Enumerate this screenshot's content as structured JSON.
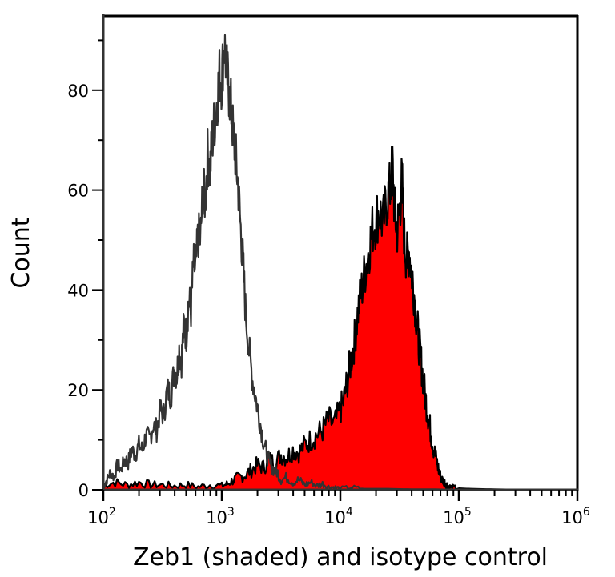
{
  "chart_data": {
    "type": "histogram",
    "title": "",
    "xlabel": "Zeb1 (shaded) and isotype control",
    "ylabel": "Count",
    "xscale": "log",
    "xlim": [
      100,
      1000000
    ],
    "ylim": [
      0,
      95
    ],
    "yticks": [
      0,
      20,
      40,
      60,
      80
    ],
    "ytick_labels": [
      "0",
      "20",
      "40",
      "60",
      "80"
    ],
    "xticks": [
      100,
      1000,
      10000,
      100000,
      1000000
    ],
    "xtick_labels": [
      {
        "base": "10",
        "exp": "2"
      },
      {
        "base": "10",
        "exp": "3"
      },
      {
        "base": "10",
        "exp": "4"
      },
      {
        "base": "10",
        "exp": "5"
      },
      {
        "base": "10",
        "exp": "6"
      }
    ],
    "grid": false,
    "legend": null,
    "series": [
      {
        "name": "Isotype control",
        "style": "outline",
        "color": "#333333",
        "fill": "none",
        "log10_x": [
          2.0,
          2.03,
          2.06,
          2.09,
          2.12,
          2.15,
          2.18,
          2.21,
          2.24,
          2.27,
          2.3,
          2.33,
          2.36,
          2.39,
          2.42,
          2.45,
          2.48,
          2.51,
          2.54,
          2.57,
          2.6,
          2.62,
          2.64,
          2.66,
          2.68,
          2.7,
          2.72,
          2.74,
          2.76,
          2.78,
          2.8,
          2.82,
          2.84,
          2.86,
          2.88,
          2.9,
          2.92,
          2.94,
          2.96,
          2.98,
          3.0,
          3.02,
          3.04,
          3.06,
          3.08,
          3.1,
          3.12,
          3.14,
          3.16,
          3.18,
          3.2,
          3.23,
          3.26,
          3.29,
          3.32,
          3.35,
          3.38,
          3.41,
          3.44,
          3.47,
          3.5,
          3.55,
          3.6,
          3.65,
          3.7,
          3.75,
          3.8,
          3.85,
          3.9,
          3.95,
          4.0,
          4.1,
          4.2,
          4.4,
          4.6,
          4.8,
          5.0,
          5.4,
          5.8,
          6.0
        ],
        "counts": [
          0.5,
          2,
          3.5,
          2.5,
          5,
          4,
          6,
          5.5,
          8,
          7,
          9,
          8,
          11,
          10,
          13,
          12,
          16,
          15,
          20,
          19,
          24,
          23,
          28,
          26,
          33,
          31,
          38,
          36,
          45,
          44,
          51,
          50,
          60,
          58,
          67,
          64,
          70,
          74,
          78,
          83,
          82,
          90,
          84,
          80,
          76,
          70,
          66,
          60,
          52,
          45,
          36,
          28,
          22,
          18,
          14,
          10,
          7,
          5,
          4,
          3.5,
          2,
          2.5,
          1.5,
          2,
          1,
          1.5,
          0.8,
          1.2,
          0.6,
          0.5,
          0.3,
          0.5,
          0.2,
          0.2,
          0.1,
          0.1,
          0,
          0,
          0,
          0
        ]
      },
      {
        "name": "Zeb1",
        "style": "shaded",
        "color": "#000000",
        "fill": "#ff0000",
        "log10_x": [
          2.0,
          2.1,
          2.2,
          2.3,
          2.4,
          2.5,
          2.6,
          2.7,
          2.8,
          2.9,
          3.0,
          3.05,
          3.1,
          3.15,
          3.2,
          3.25,
          3.3,
          3.35,
          3.4,
          3.45,
          3.5,
          3.55,
          3.6,
          3.65,
          3.7,
          3.75,
          3.8,
          3.85,
          3.9,
          3.95,
          4.0,
          4.03,
          4.06,
          4.09,
          4.12,
          4.15,
          4.18,
          4.21,
          4.24,
          4.27,
          4.3,
          4.33,
          4.36,
          4.39,
          4.42,
          4.44,
          4.46,
          4.48,
          4.5,
          4.52,
          4.54,
          4.56,
          4.58,
          4.6,
          4.62,
          4.64,
          4.66,
          4.68,
          4.7,
          4.72,
          4.74,
          4.76,
          4.78,
          4.8,
          4.82,
          4.84,
          4.86,
          4.88,
          4.9,
          4.92,
          4.95,
          5.0,
          5.1,
          5.3,
          5.6,
          5.8,
          6.0
        ],
        "counts": [
          1,
          1.5,
          1,
          1.5,
          1,
          1,
          0.8,
          1,
          0.6,
          1,
          0.8,
          1.2,
          2,
          2.5,
          3,
          4,
          5,
          4.5,
          6,
          5.5,
          7,
          6.5,
          8,
          7.5,
          9,
          10,
          11,
          12,
          14,
          13,
          16,
          18,
          22,
          26,
          30,
          36,
          40,
          44,
          48,
          52,
          54,
          56,
          53,
          58,
          60,
          65,
          55,
          52,
          56,
          62,
          50,
          46,
          48,
          44,
          40,
          35,
          30,
          26,
          22,
          18,
          15,
          12,
          9,
          7,
          5,
          3,
          2,
          1.5,
          1,
          0.6,
          0.5,
          0.3,
          0.2,
          0.1,
          0,
          0,
          0
        ]
      }
    ]
  },
  "axes": {
    "y_title": "Count",
    "x_title": "Zeb1 (shaded) and isotype control"
  },
  "colors": {
    "shaded_fill": "#ff0000",
    "shaded_outline": "#000000",
    "isotype_line": "#333333",
    "frame": "#000000"
  }
}
